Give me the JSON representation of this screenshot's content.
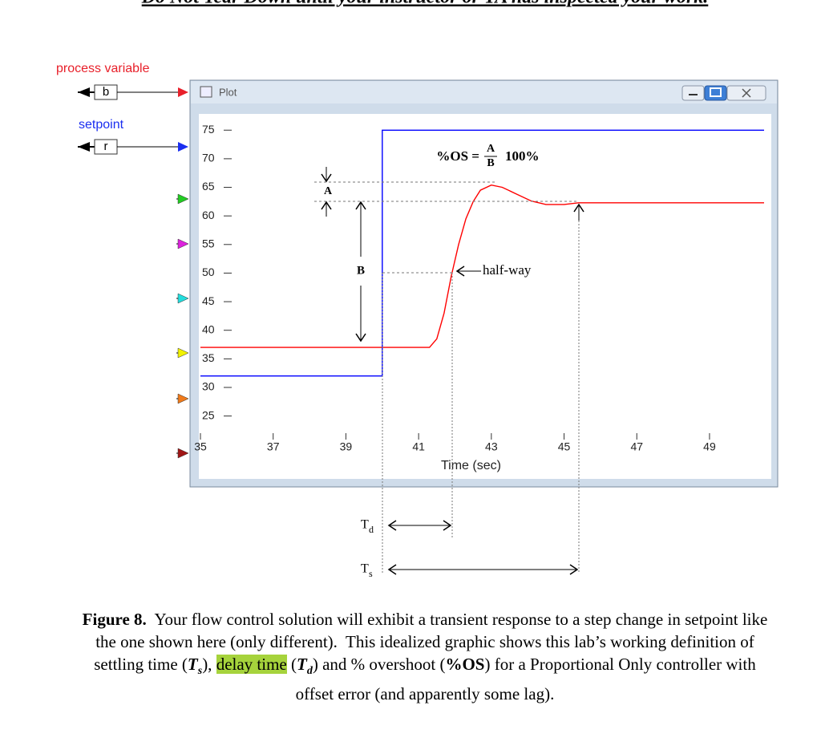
{
  "header": {
    "banner": "Do Not Tear Down until your instructor or TA has inspected your work."
  },
  "terminals": [
    "b",
    "r"
  ],
  "window": {
    "title": "Plot"
  },
  "chart_data": {
    "type": "line",
    "xlabel": "Time (sec)",
    "xlim": [
      35,
      50.5
    ],
    "xticks": [
      35,
      37,
      39,
      41,
      43,
      45,
      47,
      49
    ],
    "ylim": [
      22,
      77
    ],
    "yticks": [
      25,
      30,
      35,
      40,
      45,
      50,
      55,
      60,
      65,
      70,
      75
    ],
    "series": [
      {
        "name": "process variable",
        "color": "#ff0000",
        "x": [
          35,
          41.3,
          41.5,
          41.7,
          41.9,
          42.1,
          42.3,
          42.5,
          42.7,
          43.0,
          43.3,
          43.7,
          44.1,
          44.5,
          45.0,
          45.4,
          50.5
        ],
        "values": [
          37,
          37,
          38.5,
          43,
          49.5,
          55,
          59.5,
          62.5,
          64.5,
          65.4,
          65,
          63.8,
          62.6,
          62,
          62,
          62.3,
          62.3
        ]
      },
      {
        "name": "setpoint",
        "color": "#0000ff",
        "x": [
          35,
          40,
          40,
          50.5
        ],
        "values": [
          32,
          32,
          75,
          75
        ]
      }
    ],
    "annotations": {
      "formula_lhs": "%OS =",
      "numerator": "A",
      "denominator": "B",
      "formula_rhs": "100%",
      "a": "A",
      "b": "B",
      "half_way": "half-way",
      "td": "T",
      "td_sub": "d",
      "ts": "T",
      "ts_sub": "s"
    }
  },
  "caption": {
    "runs": [
      {
        "text": "Figure 8.",
        "bold": true
      },
      {
        "text": "  Your flow control solution will exhibit a transient response to a step change in setpoint like the one shown here (only different).  This idealized graphic shows this lab’s working definition of settling time ("
      },
      {
        "text": "T",
        "bold": true,
        "italic": true
      },
      {
        "text": "s",
        "bold": true,
        "italic": true,
        "sub": true
      },
      {
        "text": "), "
      },
      {
        "text": "delay time",
        "highlight": "#a6d33c"
      },
      {
        "text": " ("
      },
      {
        "text": "T",
        "bold": true,
        "italic": true
      },
      {
        "text": "d",
        "bold": true,
        "italic": true,
        "sub": true
      },
      {
        "text": ") and % overshoot ("
      },
      {
        "text": "%OS",
        "bold": true
      },
      {
        "text": ") for a Proportional Only controller with offset error (and apparently some lag)."
      }
    ]
  }
}
